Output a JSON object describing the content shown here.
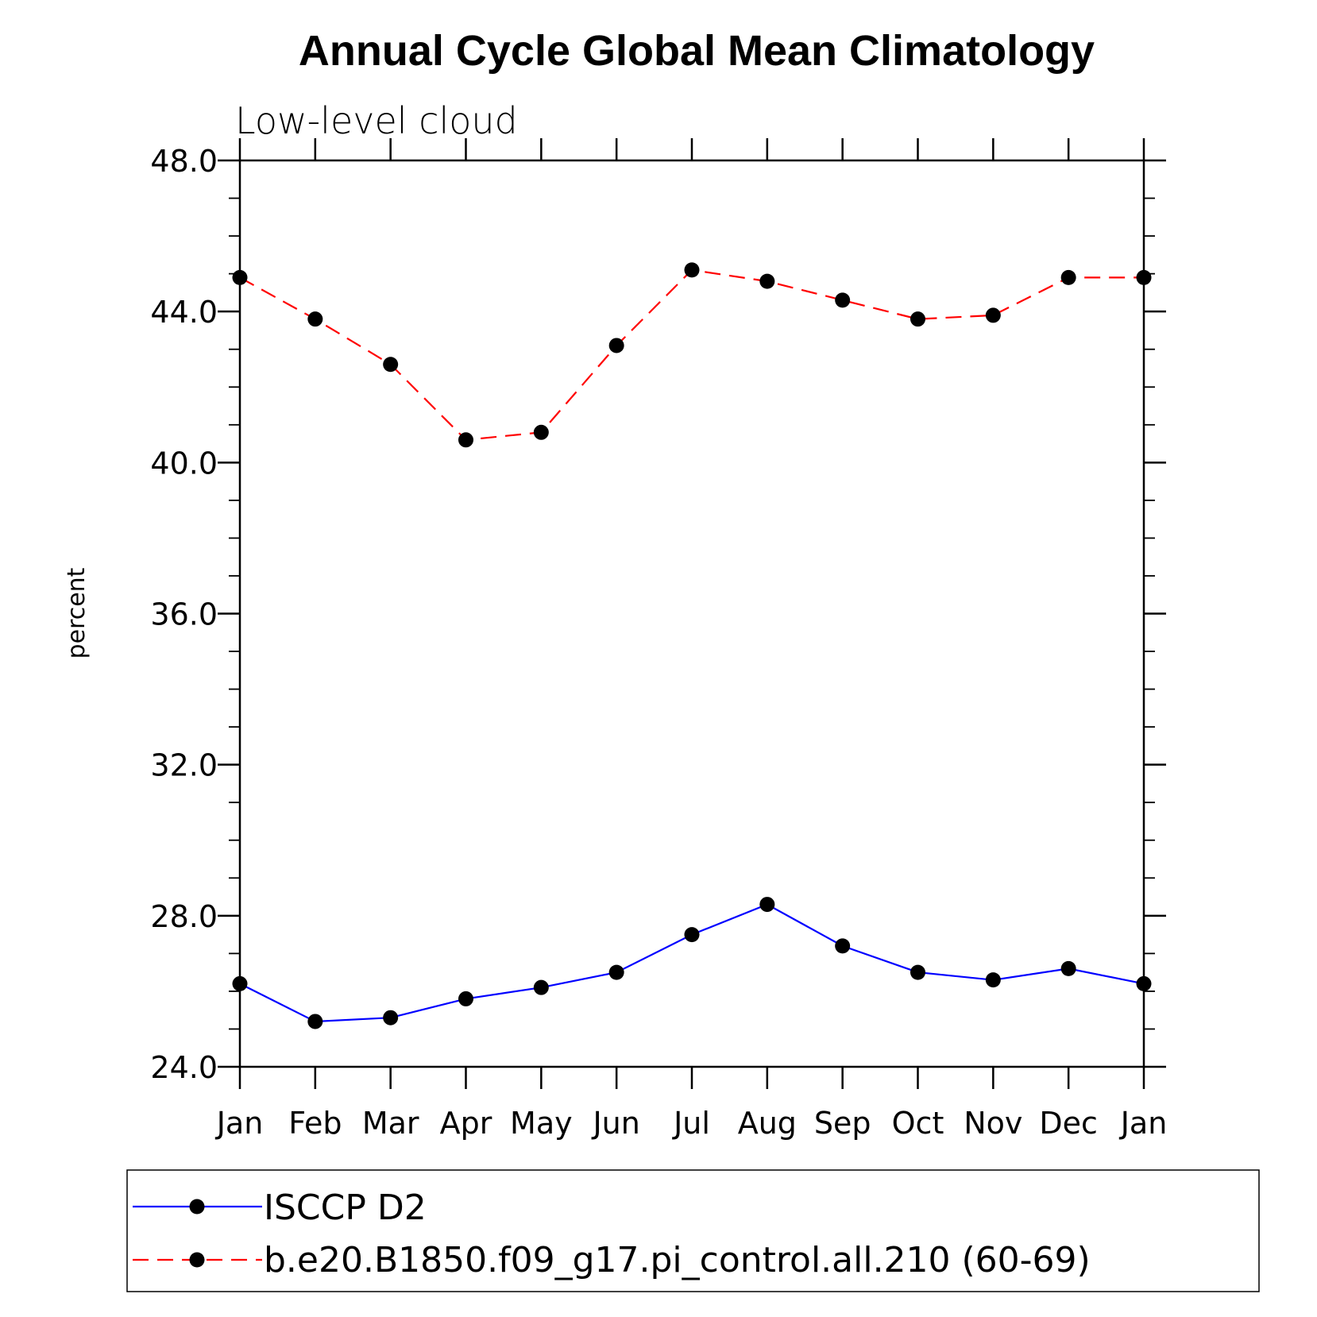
{
  "chart_data": {
    "type": "line",
    "title": "Annual Cycle Global Mean Climatology",
    "subtitle": "Low-level cloud",
    "xlabel": "",
    "ylabel": "percent",
    "categories": [
      "Jan",
      "Feb",
      "Mar",
      "Apr",
      "May",
      "Jun",
      "Jul",
      "Aug",
      "Sep",
      "Oct",
      "Nov",
      "Dec",
      "Jan"
    ],
    "ylim": [
      24.0,
      48.0
    ],
    "yticks": [
      "24.0",
      "28.0",
      "32.0",
      "36.0",
      "40.0",
      "44.0",
      "48.0"
    ],
    "ytick_values": [
      24,
      28,
      32,
      36,
      40,
      44,
      48
    ],
    "y_minor_step": 1.0,
    "grid": false,
    "legend_position": "bottom",
    "series": [
      {
        "name": "ISCCP D2",
        "color": "#0000ff",
        "dash": "solid",
        "marker": "filled-circle",
        "values": [
          26.2,
          25.2,
          25.3,
          25.8,
          26.1,
          26.5,
          27.5,
          28.3,
          27.2,
          26.5,
          26.3,
          26.6,
          26.2
        ]
      },
      {
        "name": "b.e20.B1850.f09_g17.pi_control.all.210 (60-69)",
        "color": "#ff0000",
        "dash": "dashed",
        "marker": "filled-circle",
        "values": [
          44.9,
          43.8,
          42.6,
          40.6,
          40.8,
          43.1,
          45.1,
          44.8,
          44.3,
          43.8,
          43.9,
          44.9,
          44.9
        ]
      }
    ]
  }
}
